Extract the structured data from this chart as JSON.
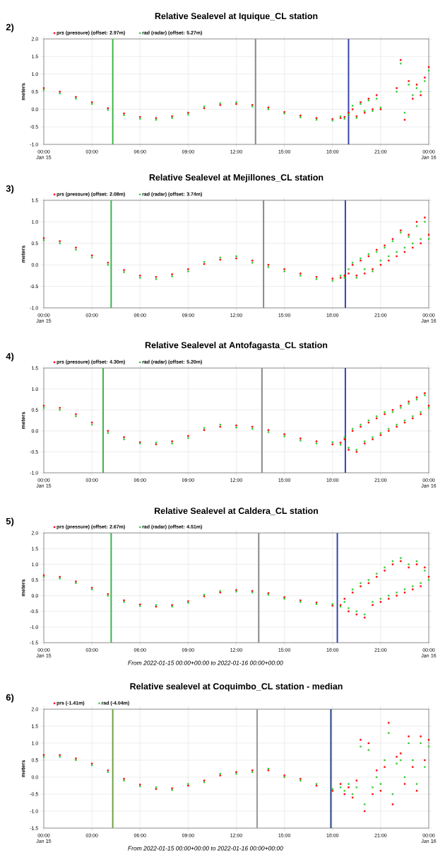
{
  "chart_data": [
    {
      "type": "scatter",
      "title": "Relative Sealevel at Iquique_CL station",
      "ylabel": "meters",
      "annotations": [
        "2)"
      ],
      "legend": "top",
      "grid": true,
      "marker": "square",
      "x": [
        0,
        1,
        2,
        3,
        4,
        5,
        6,
        7,
        8,
        9,
        10,
        11,
        12,
        13,
        14,
        15,
        16,
        17,
        18,
        18.5,
        18.75,
        19,
        19.25,
        19.5,
        19.75,
        20,
        20.25,
        20.5,
        20.75,
        21,
        21.25,
        21.5,
        21.75,
        22,
        22.25,
        22.5,
        22.75,
        23,
        23.25,
        23.5,
        23.75,
        24
      ],
      "xlim": [
        0,
        24
      ],
      "ylim": [
        -1,
        2
      ],
      "xticks": [
        {
          "value": 0,
          "label": "00:00 Jan 15"
        },
        {
          "value": 3,
          "label": "03:00"
        },
        {
          "value": 6,
          "label": "06:00"
        },
        {
          "value": 9,
          "label": "09:00"
        },
        {
          "value": 12,
          "label": "12:00"
        },
        {
          "value": 15,
          "label": "15:00"
        },
        {
          "value": 18,
          "label": "18:00"
        },
        {
          "value": 21,
          "label": "21:00"
        },
        {
          "value": 24,
          "label": "00:00 Jan 16"
        }
      ],
      "yticks": [
        {
          "value": -1,
          "label": "-1.0"
        },
        {
          "value": -0.5,
          "label": "-0.5"
        },
        {
          "value": 0,
          "label": "0.0"
        },
        {
          "value": 0.5,
          "label": "0.5"
        },
        {
          "value": 1,
          "label": "1.0"
        },
        {
          "value": 1.5,
          "label": "1.5"
        },
        {
          "value": 2,
          "label": "2.0"
        }
      ],
      "ref_lines": [
        {
          "axis": "x",
          "value": 4.3,
          "color": "#3cb44b"
        },
        {
          "axis": "x",
          "value": 13.2,
          "color": "#888888"
        },
        {
          "axis": "x",
          "value": 19.0,
          "color": "#3344aa"
        }
      ],
      "series": [
        {
          "name": "prs (pressure) (offset: 2.97m)",
          "color": "#ff0000",
          "values": [
            0.6,
            0.5,
            0.35,
            0.2,
            0.03,
            -0.12,
            -0.22,
            -0.25,
            -0.2,
            -0.1,
            0.03,
            0.12,
            0.15,
            0.12,
            0.05,
            -0.08,
            -0.18,
            -0.25,
            -0.28,
            -0.25,
            -0.22,
            -0.1,
            0.0,
            -0.2,
            0.2,
            -0.1,
            0.3,
            0.0,
            0.4,
            0.0,
            null,
            null,
            null,
            0.6,
            1.4,
            -0.3,
            0.8,
            0.3,
            0.7,
            0.4,
            0.9,
            1.2
          ]
        },
        {
          "name": "rad (radar) (offset: 5.27m)",
          "color": "#33cc33",
          "values": [
            0.55,
            0.45,
            0.3,
            0.15,
            -0.02,
            -0.17,
            -0.27,
            -0.3,
            -0.25,
            -0.15,
            0.08,
            0.17,
            0.2,
            0.08,
            0.0,
            -0.12,
            -0.23,
            -0.3,
            -0.32,
            -0.2,
            -0.27,
            -0.15,
            0.1,
            -0.25,
            0.15,
            -0.05,
            0.25,
            -0.05,
            0.3,
            0.05,
            null,
            null,
            null,
            0.5,
            1.3,
            -0.1,
            0.7,
            0.4,
            0.6,
            0.5,
            0.8,
            1.1
          ]
        }
      ]
    },
    {
      "type": "scatter",
      "title": "Relative Sealevel at Mejillones_CL station",
      "ylabel": "meters",
      "annotations": [
        "3)"
      ],
      "legend": "top",
      "grid": true,
      "marker": "square",
      "x": [
        0,
        1,
        2,
        3,
        4,
        5,
        6,
        7,
        8,
        9,
        10,
        11,
        12,
        13,
        14,
        15,
        16,
        17,
        18,
        18.5,
        18.75,
        19,
        19.25,
        19.5,
        19.75,
        20,
        20.25,
        20.5,
        20.75,
        21,
        21.25,
        21.5,
        21.75,
        22,
        22.25,
        22.5,
        22.75,
        23,
        23.25,
        23.5,
        23.75,
        24
      ],
      "xlim": [
        0,
        24
      ],
      "ylim": [
        -1,
        1.5
      ],
      "xticks": [
        {
          "value": 0,
          "label": "00:00 Jan 15"
        },
        {
          "value": 3,
          "label": "03:00"
        },
        {
          "value": 6,
          "label": "06:00"
        },
        {
          "value": 9,
          "label": "09:00"
        },
        {
          "value": 12,
          "label": "12:00"
        },
        {
          "value": 15,
          "label": "15:00"
        },
        {
          "value": 18,
          "label": "18:00"
        },
        {
          "value": 21,
          "label": "21:00"
        },
        {
          "value": 24,
          "label": "00:00 Jan 16"
        }
      ],
      "yticks": [
        {
          "value": -1,
          "label": "-1.0"
        },
        {
          "value": -0.5,
          "label": "-0.5"
        },
        {
          "value": 0,
          "label": "0.0"
        },
        {
          "value": 0.5,
          "label": "0.5"
        },
        {
          "value": 1,
          "label": "1.0"
        },
        {
          "value": 1.5,
          "label": "1.5"
        }
      ],
      "ref_lines": [
        {
          "axis": "x",
          "value": 4.2,
          "color": "#3cb44b"
        },
        {
          "axis": "x",
          "value": 13.7,
          "color": "#888888"
        },
        {
          "axis": "x",
          "value": 18.8,
          "color": "#3344aa"
        }
      ],
      "series": [
        {
          "name": "prs (pressure) (offset: 2.08m)",
          "color": "#ff0000",
          "values": [
            0.62,
            0.55,
            0.4,
            0.22,
            0.05,
            -0.12,
            -0.25,
            -0.28,
            -0.22,
            -0.1,
            0.02,
            0.12,
            0.15,
            0.1,
            0.0,
            -0.1,
            -0.2,
            -0.28,
            -0.32,
            -0.3,
            -0.25,
            -0.2,
            0.0,
            -0.25,
            0.1,
            -0.2,
            0.2,
            -0.1,
            0.35,
            0.0,
            0.45,
            0.1,
            0.6,
            0.2,
            0.8,
            0.3,
            0.7,
            0.4,
            1.0,
            0.5,
            1.1,
            0.7
          ]
        },
        {
          "name": "rad (radar) (offset: 3.74m)",
          "color": "#33cc33",
          "values": [
            0.57,
            0.5,
            0.35,
            0.17,
            0.0,
            -0.17,
            -0.3,
            -0.33,
            -0.27,
            -0.15,
            0.07,
            0.17,
            0.2,
            0.05,
            -0.05,
            -0.15,
            -0.25,
            -0.33,
            -0.37,
            -0.25,
            -0.3,
            -0.1,
            0.05,
            -0.3,
            0.15,
            -0.1,
            0.25,
            -0.15,
            0.3,
            0.1,
            0.4,
            0.2,
            0.55,
            0.3,
            0.75,
            0.4,
            0.65,
            0.5,
            0.9,
            0.6,
            1.0,
            0.6
          ]
        }
      ]
    },
    {
      "type": "scatter",
      "title": "Relative Sealevel at Antofagasta_CL station",
      "ylabel": "meters",
      "annotations": [
        "4)"
      ],
      "legend": "top",
      "grid": true,
      "marker": "square",
      "x": [
        0,
        1,
        2,
        3,
        4,
        5,
        6,
        7,
        8,
        9,
        10,
        11,
        12,
        13,
        14,
        15,
        16,
        17,
        18,
        18.5,
        18.75,
        19,
        19.25,
        19.5,
        19.75,
        20,
        20.25,
        20.5,
        20.75,
        21,
        21.25,
        21.5,
        21.75,
        22,
        22.25,
        22.5,
        22.75,
        23,
        23.25,
        23.5,
        23.75,
        24
      ],
      "xlim": [
        0,
        24
      ],
      "ylim": [
        -1,
        1.5
      ],
      "xticks": [
        {
          "value": 0,
          "label": "00:00 Jan 15"
        },
        {
          "value": 3,
          "label": "03:00"
        },
        {
          "value": 6,
          "label": "06:00"
        },
        {
          "value": 9,
          "label": "09:00"
        },
        {
          "value": 12,
          "label": "12:00"
        },
        {
          "value": 15,
          "label": "15:00"
        },
        {
          "value": 18,
          "label": "18:00"
        },
        {
          "value": 21,
          "label": "21:00"
        },
        {
          "value": 24,
          "label": "00:00 Jan 16"
        }
      ],
      "yticks": [
        {
          "value": -1,
          "label": "-1.0"
        },
        {
          "value": -0.5,
          "label": "-0.5"
        },
        {
          "value": 0,
          "label": "0.0"
        },
        {
          "value": 0.5,
          "label": "0.5"
        },
        {
          "value": 1,
          "label": "1.0"
        },
        {
          "value": 1.5,
          "label": "1.5"
        }
      ],
      "ref_lines": [
        {
          "axis": "x",
          "value": 3.7,
          "color": "#3cb44b"
        },
        {
          "axis": "x",
          "value": 13.6,
          "color": "#888888"
        },
        {
          "axis": "x",
          "value": 18.8,
          "color": "#3344aa"
        }
      ],
      "series": [
        {
          "name": "prs (pressure) (offset: 4.30m)",
          "color": "#ff0000",
          "values": [
            0.6,
            0.55,
            0.4,
            0.2,
            0.0,
            -0.15,
            -0.27,
            -0.32,
            -0.25,
            -0.12,
            0.02,
            0.1,
            0.13,
            0.1,
            0.02,
            -0.08,
            -0.18,
            -0.25,
            -0.32,
            -0.28,
            -0.2,
            -0.45,
            0.0,
            -0.5,
            0.1,
            -0.3,
            0.2,
            -0.2,
            0.3,
            -0.1,
            0.4,
            0.0,
            0.5,
            0.1,
            0.6,
            0.2,
            0.7,
            0.3,
            0.8,
            0.4,
            0.9,
            0.6
          ]
        },
        {
          "name": "rad (radar) (offset: 5.20m)",
          "color": "#33cc33",
          "values": [
            0.55,
            0.5,
            0.35,
            0.15,
            -0.05,
            -0.2,
            -0.3,
            -0.28,
            -0.3,
            -0.17,
            0.07,
            0.15,
            0.08,
            0.05,
            -0.03,
            -0.13,
            -0.23,
            -0.3,
            -0.27,
            -0.33,
            -0.15,
            -0.4,
            0.05,
            -0.45,
            0.15,
            -0.25,
            0.25,
            -0.15,
            0.35,
            -0.05,
            0.45,
            0.05,
            0.45,
            0.15,
            0.55,
            0.25,
            0.65,
            0.35,
            0.75,
            0.45,
            0.85,
            0.55
          ]
        }
      ]
    },
    {
      "type": "scatter",
      "title": "Relative Sealevel at Caldera_CL station",
      "ylabel": "meters",
      "annotations": [
        "5)",
        "From 2022-01-15 00:00+00:00 to 2022-01-16 00:00+00:00"
      ],
      "legend": "top",
      "grid": true,
      "marker": "square",
      "x": [
        0,
        1,
        2,
        3,
        4,
        5,
        6,
        7,
        8,
        9,
        10,
        11,
        12,
        13,
        14,
        15,
        16,
        17,
        18,
        18.5,
        18.75,
        19,
        19.25,
        19.5,
        19.75,
        20,
        20.25,
        20.5,
        20.75,
        21,
        21.25,
        21.5,
        21.75,
        22,
        22.25,
        22.5,
        22.75,
        23,
        23.25,
        23.5,
        23.75,
        24
      ],
      "xlim": [
        0,
        24
      ],
      "ylim": [
        -1.5,
        2
      ],
      "xticks": [
        {
          "value": 0,
          "label": "00:00 Jan 15"
        },
        {
          "value": 3,
          "label": "03:00"
        },
        {
          "value": 6,
          "label": "06:00"
        },
        {
          "value": 9,
          "label": "09:00"
        },
        {
          "value": 12,
          "label": "12:00"
        },
        {
          "value": 15,
          "label": "15:00"
        },
        {
          "value": 18,
          "label": "18:00"
        },
        {
          "value": 21,
          "label": "21:00"
        },
        {
          "value": 24,
          "label": "00:00 Jan 16"
        }
      ],
      "yticks": [
        {
          "value": -1.5,
          "label": "-1.5"
        },
        {
          "value": -1,
          "label": "-1.0"
        },
        {
          "value": -0.5,
          "label": "-0.5"
        },
        {
          "value": 0,
          "label": "0.0"
        },
        {
          "value": 0.5,
          "label": "0.5"
        },
        {
          "value": 1,
          "label": "1.0"
        },
        {
          "value": 1.5,
          "label": "1.5"
        },
        {
          "value": 2,
          "label": "2.0"
        }
      ],
      "ref_lines": [
        {
          "axis": "x",
          "value": 4.2,
          "color": "#3cb44b"
        },
        {
          "axis": "x",
          "value": 13.4,
          "color": "#888888"
        },
        {
          "axis": "x",
          "value": 18.3,
          "color": "#3344aa"
        }
      ],
      "series": [
        {
          "name": "prs (pressure) (offset: 2.67m)",
          "color": "#ff0000",
          "values": [
            0.65,
            0.6,
            0.45,
            0.25,
            0.05,
            -0.15,
            -0.28,
            -0.35,
            -0.3,
            -0.18,
            -0.02,
            0.1,
            0.18,
            0.15,
            0.08,
            -0.05,
            -0.15,
            -0.22,
            -0.32,
            -0.3,
            -0.1,
            -0.5,
            0.1,
            -0.6,
            0.3,
            -0.7,
            0.4,
            -0.3,
            0.6,
            -0.2,
            0.8,
            -0.1,
            1.0,
            0.0,
            1.1,
            0.1,
            0.9,
            0.2,
            1.0,
            0.3,
            0.9,
            0.6
          ]
        },
        {
          "name": "rad (radar) (offset: 4.51m)",
          "color": "#33cc33",
          "values": [
            0.6,
            0.55,
            0.4,
            0.2,
            0.0,
            -0.2,
            -0.33,
            -0.3,
            -0.35,
            -0.23,
            0.03,
            0.15,
            0.13,
            0.1,
            0.03,
            -0.1,
            -0.2,
            -0.27,
            -0.27,
            -0.35,
            -0.2,
            -0.4,
            0.2,
            -0.5,
            0.4,
            -0.6,
            0.5,
            -0.2,
            0.7,
            -0.1,
            0.9,
            0.0,
            1.1,
            0.1,
            1.2,
            0.2,
            1.0,
            0.3,
            1.1,
            0.4,
            0.8,
            0.5
          ]
        }
      ]
    },
    {
      "type": "scatter",
      "title": "Relative sealevel at Coquimbo_CL station - median",
      "ylabel": "meters",
      "annotations": [
        "6)",
        "From 2022-01-15 00:00+00:00 to 2022-01-16 00:00+00:00"
      ],
      "legend": "top",
      "grid": true,
      "marker": "square",
      "x": [
        0,
        1,
        2,
        3,
        4,
        5,
        6,
        7,
        8,
        9,
        10,
        11,
        12,
        13,
        14,
        15,
        16,
        17,
        18,
        18.5,
        18.75,
        19,
        19.25,
        19.5,
        19.75,
        20,
        20.25,
        20.5,
        20.75,
        21,
        21.25,
        21.5,
        21.75,
        22,
        22.25,
        22.5,
        22.75,
        23,
        23.25,
        23.5,
        23.75,
        24
      ],
      "xlim": [
        0,
        24
      ],
      "ylim": [
        -1.5,
        2
      ],
      "xticks": [
        {
          "value": 0,
          "label": "00:00 Jan 15"
        },
        {
          "value": 3,
          "label": "03:00"
        },
        {
          "value": 6,
          "label": "06:00"
        },
        {
          "value": 9,
          "label": "09:00"
        },
        {
          "value": 12,
          "label": "12:00"
        },
        {
          "value": 15,
          "label": "15:00"
        },
        {
          "value": 18,
          "label": "18:00"
        },
        {
          "value": 21,
          "label": "21:00"
        },
        {
          "value": 24,
          "label": "00:00 Jan 16"
        }
      ],
      "yticks": [
        {
          "value": -1.5,
          "label": "-1.5"
        },
        {
          "value": -1,
          "label": "-1.0"
        },
        {
          "value": -0.5,
          "label": "-0.5"
        },
        {
          "value": 0,
          "label": "0.0"
        },
        {
          "value": 0.5,
          "label": "0.5"
        },
        {
          "value": 1,
          "label": "1.0"
        },
        {
          "value": 1.5,
          "label": "1.5"
        },
        {
          "value": 2,
          "label": "2.0"
        }
      ],
      "ref_lines": [
        {
          "axis": "x",
          "value": 4.3,
          "color": "#70a040"
        },
        {
          "axis": "x",
          "value": 13.3,
          "color": "#999999"
        },
        {
          "axis": "x",
          "value": 17.9,
          "color": "#1f3f7f"
        }
      ],
      "series": [
        {
          "name": "prs (-1.41m)",
          "color": "#ff0000",
          "values": [
            0.65,
            0.65,
            0.55,
            0.4,
            0.2,
            -0.05,
            -0.22,
            -0.35,
            -0.33,
            -0.25,
            -0.1,
            0.05,
            0.15,
            0.2,
            0.2,
            0.05,
            -0.05,
            -0.25,
            -0.4,
            -0.2,
            -0.5,
            -0.3,
            -0.6,
            -0.1,
            1.1,
            -1.0,
            1.0,
            -0.5,
            0.2,
            -0.4,
            0.3,
            1.6,
            -0.8,
            0.6,
            0.7,
            -0.2,
            1.2,
            0.3,
            -0.4,
            1.2,
            0.5,
            1.1
          ]
        },
        {
          "name": "rad (-4.04m)",
          "color": "#33cc33",
          "values": [
            0.6,
            0.6,
            0.5,
            0.35,
            0.15,
            -0.1,
            -0.27,
            -0.3,
            -0.38,
            -0.2,
            -0.15,
            0.1,
            0.1,
            0.15,
            0.25,
            0.0,
            -0.1,
            -0.2,
            -0.35,
            -0.3,
            -0.4,
            -0.2,
            -0.5,
            -0.3,
            0.9,
            -0.8,
            0.8,
            -0.3,
            0.0,
            -0.2,
            0.5,
            1.3,
            -0.5,
            0.4,
            0.5,
            0.0,
            1.0,
            0.5,
            -0.2,
            1.0,
            0.3,
            0.9
          ]
        }
      ]
    }
  ]
}
